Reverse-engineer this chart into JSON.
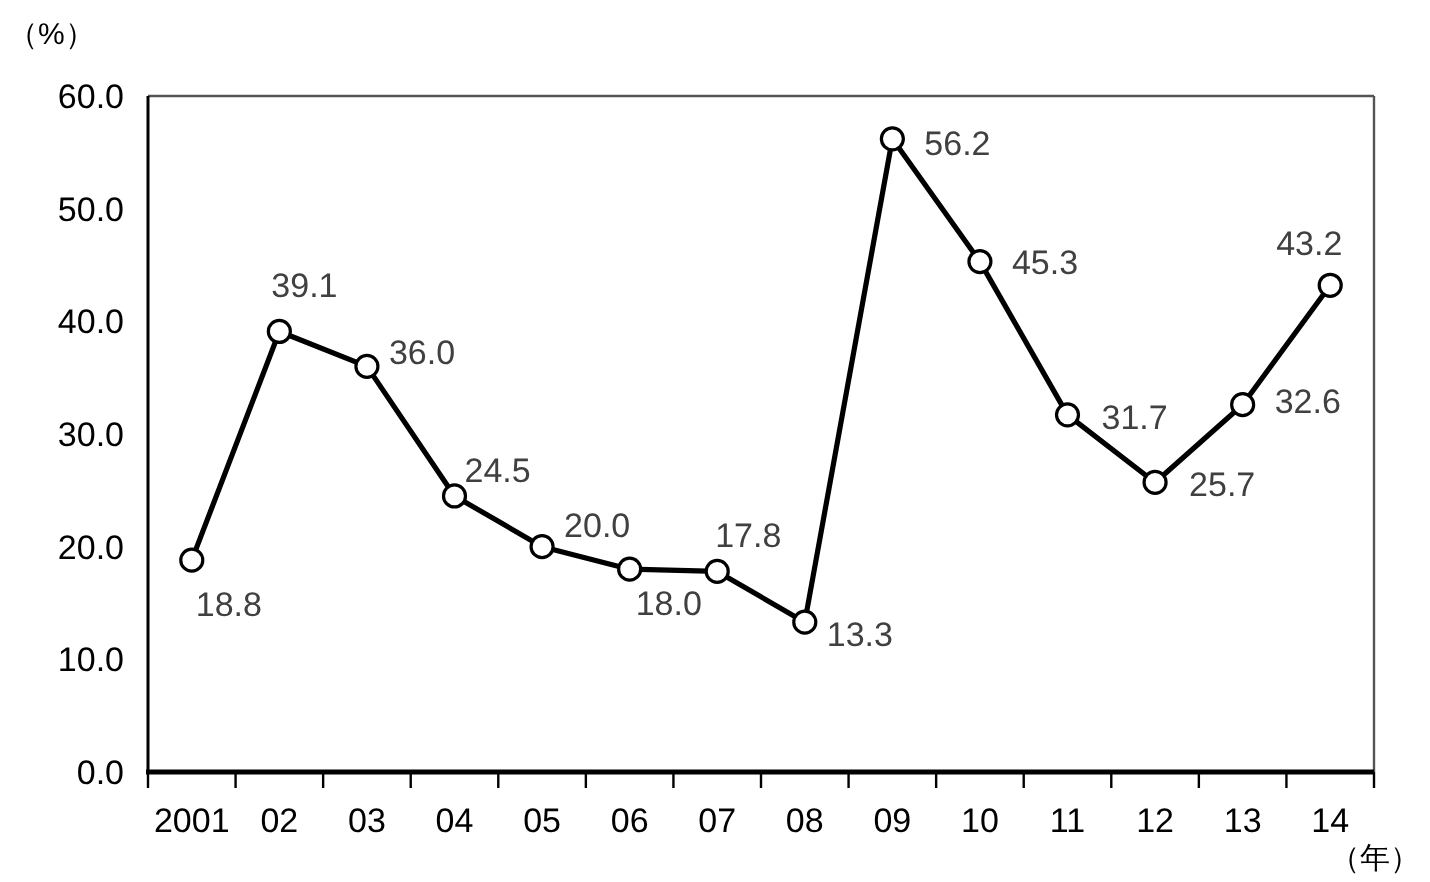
{
  "chart_data": {
    "type": "line",
    "ylabel": "（%）",
    "xlabel": "（年）",
    "categories": [
      "2001",
      "02",
      "03",
      "04",
      "05",
      "06",
      "07",
      "08",
      "09",
      "10",
      "11",
      "12",
      "13",
      "14"
    ],
    "series": [
      {
        "color": "#000000",
        "values": [
          18.8,
          39.1,
          36.0,
          24.5,
          20.0,
          18.0,
          17.8,
          13.3,
          56.2,
          45.3,
          31.7,
          25.7,
          32.6,
          43.2
        ],
        "value_labels": [
          "18.8",
          "39.1",
          "36.0",
          "24.5",
          "20.0",
          "18.0",
          "17.8",
          "13.3",
          "56.2",
          "45.3",
          "31.7",
          "25.7",
          "32.6",
          "43.2"
        ]
      }
    ],
    "ylim": [
      0,
      60
    ],
    "yticks": [
      {
        "value": 0,
        "label": "0.0"
      },
      {
        "value": 10,
        "label": "10.0"
      },
      {
        "value": 20,
        "label": "20.0"
      },
      {
        "value": 30,
        "label": "30.0"
      },
      {
        "value": 40,
        "label": "40.0"
      },
      {
        "value": 50,
        "label": "50.0"
      },
      {
        "value": 60,
        "label": "60.0"
      }
    ],
    "marker": "circle",
    "line_style": "solid"
  }
}
